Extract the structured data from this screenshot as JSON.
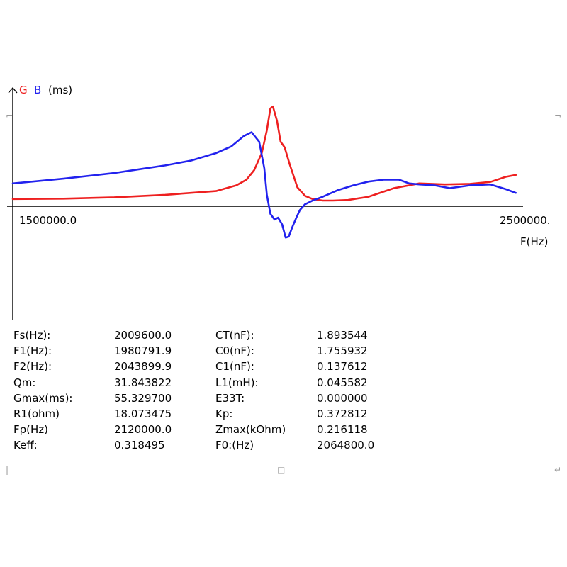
{
  "chart_data": {
    "type": "line",
    "ylabel": [
      "G",
      "B",
      "(ms)"
    ],
    "xlabel": "F(Hz)",
    "x_tick_labels": [
      "1500000.0",
      "2500000."
    ],
    "xlim": [
      1500000,
      2500000
    ],
    "ylim": [
      -50,
      55
    ],
    "colors": {
      "G": "#ee2020",
      "B": "#2222ee"
    },
    "series": [
      {
        "name": "G",
        "color": "#ee2020",
        "x": [
          1500000,
          1600000,
          1700000,
          1800000,
          1900000,
          1940000,
          1960000,
          1975000,
          1990000,
          2000000,
          2007000,
          2012000,
          2020000,
          2027000,
          2035000,
          2045000,
          2060000,
          2075000,
          2090000,
          2110000,
          2130000,
          2160000,
          2200000,
          2250000,
          2300000,
          2350000,
          2400000,
          2440000,
          2470000,
          2490000
        ],
        "y": [
          3.8,
          4.0,
          4.7,
          6.0,
          8.0,
          11.0,
          14.0,
          19.0,
          28.0,
          40.0,
          51.5,
          52.5,
          45.0,
          34.0,
          31.0,
          22.0,
          10.0,
          5.5,
          3.8,
          3.0,
          3.0,
          3.3,
          5.0,
          9.5,
          12.0,
          11.5,
          11.8,
          12.8,
          15.5,
          16.5
        ]
      },
      {
        "name": "B",
        "color": "#2222ee",
        "x": [
          1500000,
          1600000,
          1700000,
          1750000,
          1800000,
          1850000,
          1900000,
          1930000,
          1955000,
          1970000,
          1985000,
          1995000,
          2000000,
          2007000,
          2015000,
          2022000,
          2030000,
          2037000,
          2043000,
          2050000,
          2058000,
          2065000,
          2075000,
          2090000,
          2110000,
          2140000,
          2170000,
          2200000,
          2230000,
          2260000,
          2280000,
          2300000,
          2330000,
          2360000,
          2400000,
          2440000,
          2470000,
          2490000
        ],
        "y": [
          12.0,
          14.5,
          17.5,
          19.5,
          21.5,
          24.0,
          28.0,
          31.5,
          37.0,
          39.0,
          34.0,
          20.0,
          6.0,
          -4.0,
          -7.0,
          -6.0,
          -9.5,
          -16.5,
          -16.0,
          -11.0,
          -6.0,
          -2.0,
          1.0,
          3.0,
          5.0,
          8.5,
          11.0,
          13.0,
          14.0,
          14.0,
          12.0,
          11.5,
          11.0,
          9.5,
          11.0,
          11.5,
          9.0,
          7.0
        ]
      }
    ]
  },
  "params": [
    {
      "label": "Fs(Hz):",
      "value": "2009600.0",
      "label2": "CT(nF):",
      "value2": "1.893544"
    },
    {
      "label": "F1(Hz):",
      "value": "1980791.9",
      "label2": "C0(nF):",
      "value2": "1.755932"
    },
    {
      "label": "F2(Hz):",
      "value": "2043899.9",
      "label2": "C1(nF):",
      "value2": "0.137612"
    },
    {
      "label": "Qm:",
      "value": "31.843822",
      "label2": "L1(mH):",
      "value2": "0.045582"
    },
    {
      "label": "Gmax(ms):",
      "value": "55.329700",
      "label2": "E33T:",
      "value2": "0.000000"
    },
    {
      "label": "R1(ohm)",
      "value": "18.073475",
      "label2": "Kp:",
      "value2": "0.372812"
    },
    {
      "label": "Fp(Hz)",
      "value": "2120000.0",
      "label2": "Zmax(kOhm)",
      "value2": "0.216118"
    },
    {
      "label": "Keff:",
      "value": "0.318495",
      "label2": "F0:(Hz)",
      "value2": "2064800.0"
    }
  ]
}
